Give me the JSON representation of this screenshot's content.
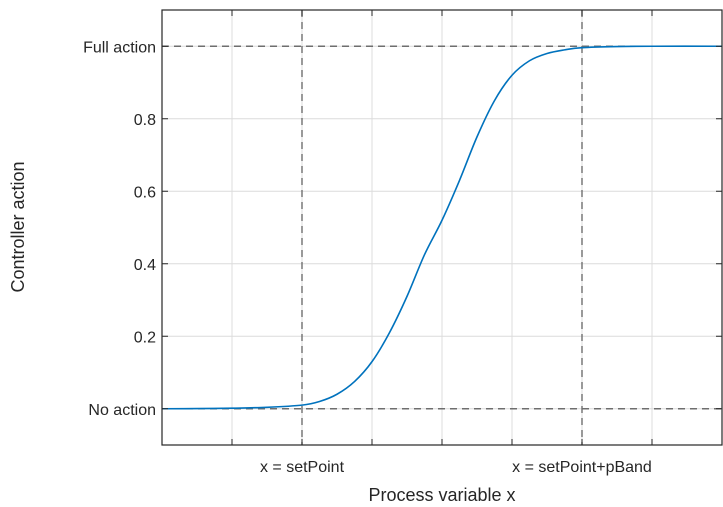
{
  "chart_data": {
    "type": "line",
    "title": "",
    "xlabel": "Process variable x",
    "ylabel": "Controller action",
    "xlim": [
      -2,
      6
    ],
    "ylim": [
      -0.1,
      1.1
    ],
    "grid": true,
    "x_minor_ticks": [
      -1,
      0,
      1,
      2,
      3,
      4,
      5
    ],
    "x_tick_labels": [
      {
        "x": 0,
        "label": "x = setPoint"
      },
      {
        "x": 4,
        "label": "x = setPoint+pBand"
      }
    ],
    "y_tick_labels": [
      {
        "y": 0,
        "label": "No action"
      },
      {
        "y": 0.2,
        "label": "0.2"
      },
      {
        "y": 0.4,
        "label": "0.4"
      },
      {
        "y": 0.6,
        "label": "0.6"
      },
      {
        "y": 0.8,
        "label": "0.8"
      },
      {
        "y": 1,
        "label": "Full action"
      }
    ],
    "reference_lines": {
      "vertical": [
        0,
        4
      ],
      "horizontal": [
        0,
        1
      ]
    },
    "series": [
      {
        "name": "controller action",
        "color": "#0072BD",
        "x": [
          -2,
          -1.5,
          -1,
          -0.5,
          0,
          0.25,
          0.5,
          0.75,
          1,
          1.25,
          1.5,
          1.75,
          2,
          2.25,
          2.5,
          2.75,
          3,
          3.25,
          3.5,
          3.75,
          4,
          4.5,
          5,
          6
        ],
        "y": [
          0.0,
          0.0005,
          0.0015,
          0.004,
          0.01,
          0.02,
          0.04,
          0.075,
          0.13,
          0.21,
          0.31,
          0.425,
          0.52,
          0.63,
          0.75,
          0.85,
          0.92,
          0.96,
          0.98,
          0.99,
          0.996,
          0.999,
          1.0,
          1.0
        ]
      }
    ]
  }
}
